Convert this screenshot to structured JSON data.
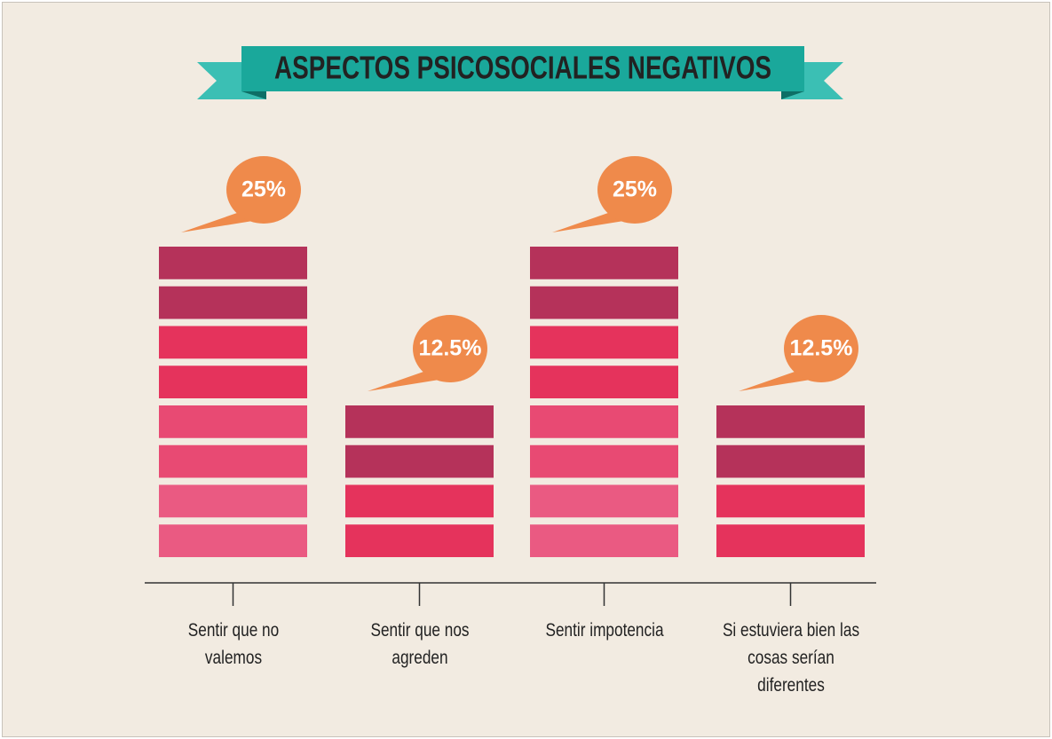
{
  "chart_data": {
    "type": "bar",
    "title": "ASPECTOS PSICOSOCIALES NEGATIVOS",
    "categories": [
      "Sentir que no valemos",
      "Sentir que nos agreden",
      "Sentir impotencia",
      "Si estuviera bien las cosas serían diferentes"
    ],
    "values": [
      25,
      12.5,
      25,
      12.5
    ],
    "value_labels": [
      "25%",
      "12.5%",
      "25%",
      "12.5%"
    ],
    "colors": [
      "#b5325a",
      "#b5325a",
      "#e5335c",
      "#e5335c",
      "#e84a73",
      "#e84a73",
      "#ea5a82",
      "#ea5a82"
    ],
    "label_color": "#ef8a4b"
  }
}
